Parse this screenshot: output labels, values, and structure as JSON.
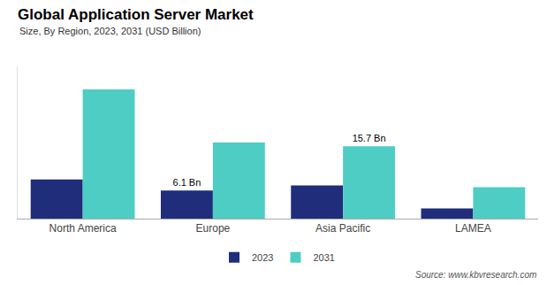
{
  "chart_data": {
    "type": "bar",
    "title": "Global Application Server Market",
    "subtitle": "Size, By Region, 2023, 2031 (USD Billion)",
    "source": "Source: www.kbvresearch.com",
    "categories": [
      "North America",
      "Europe",
      "Asia Pacific",
      "LAMEA"
    ],
    "series": [
      {
        "name": "2023",
        "color": "#1f2d7b",
        "values": [
          8.5,
          6.1,
          7.2,
          2.2
        ]
      },
      {
        "name": "2031",
        "color": "#4ecdc4",
        "values": [
          28.0,
          16.5,
          15.7,
          6.8
        ]
      }
    ],
    "annotations": [
      {
        "text": "6.1 Bn",
        "category": "Europe",
        "series": "2023"
      },
      {
        "text": "15.7 Bn",
        "category": "Asia Pacific",
        "series": "2031"
      }
    ],
    "ylim": [
      0,
      33
    ],
    "tick_labels": "x",
    "grid": false,
    "legend": "bottom"
  }
}
